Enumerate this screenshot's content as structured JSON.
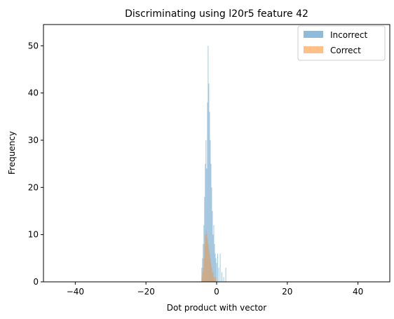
{
  "chart_data": {
    "type": "histogram",
    "title": "Discriminating using l20r5 feature 42",
    "xlabel": "Dot product with vector",
    "ylabel": "Frequency",
    "xlim": [
      -49,
      49
    ],
    "ylim": [
      0,
      54.5
    ],
    "xticks": [
      -40,
      -20,
      0,
      20,
      40
    ],
    "xtick_labels": [
      "−40",
      "−20",
      "0",
      "20",
      "40"
    ],
    "yticks": [
      0,
      10,
      20,
      30,
      40,
      50
    ],
    "ytick_labels": [
      "0",
      "10",
      "20",
      "30",
      "40",
      "50"
    ],
    "grid": false,
    "legend_position": "upper right",
    "bar_opacity": 0.5,
    "series": [
      {
        "name": "Incorrect",
        "color": "#1f77b4",
        "bins": [
          {
            "x": -4.2,
            "count": 3
          },
          {
            "x": -4.0,
            "count": 5
          },
          {
            "x": -3.8,
            "count": 8
          },
          {
            "x": -3.6,
            "count": 12
          },
          {
            "x": -3.4,
            "count": 18
          },
          {
            "x": -3.2,
            "count": 25
          },
          {
            "x": -3.0,
            "count": 30
          },
          {
            "x": -2.8,
            "count": 24
          },
          {
            "x": -2.6,
            "count": 38
          },
          {
            "x": -2.4,
            "count": 50
          },
          {
            "x": -2.2,
            "count": 42
          },
          {
            "x": -2.0,
            "count": 36
          },
          {
            "x": -1.8,
            "count": 30
          },
          {
            "x": -1.6,
            "count": 25
          },
          {
            "x": -1.4,
            "count": 20
          },
          {
            "x": -1.2,
            "count": 15
          },
          {
            "x": -1.0,
            "count": 10
          },
          {
            "x": -0.8,
            "count": 12
          },
          {
            "x": -0.6,
            "count": 8
          },
          {
            "x": -0.4,
            "count": 6
          },
          {
            "x": -0.2,
            "count": 5
          },
          {
            "x": 0.0,
            "count": 4
          },
          {
            "x": 0.3,
            "count": 6
          },
          {
            "x": 0.6,
            "count": 3
          },
          {
            "x": 1.0,
            "count": 6
          },
          {
            "x": 1.5,
            "count": 2
          },
          {
            "x": 2.0,
            "count": 1
          },
          {
            "x": 2.6,
            "count": 3
          }
        ]
      },
      {
        "name": "Correct",
        "color": "#ff7f0e",
        "bins": [
          {
            "x": -4.2,
            "count": 1
          },
          {
            "x": -4.0,
            "count": 2
          },
          {
            "x": -3.8,
            "count": 3
          },
          {
            "x": -3.6,
            "count": 5
          },
          {
            "x": -3.4,
            "count": 8
          },
          {
            "x": -3.2,
            "count": 10
          },
          {
            "x": -3.0,
            "count": 11
          },
          {
            "x": -2.8,
            "count": 10
          },
          {
            "x": -2.6,
            "count": 9
          },
          {
            "x": -2.4,
            "count": 8
          },
          {
            "x": -2.2,
            "count": 7
          },
          {
            "x": -2.0,
            "count": 6
          },
          {
            "x": -1.8,
            "count": 5
          },
          {
            "x": -1.6,
            "count": 4
          },
          {
            "x": -1.4,
            "count": 3
          },
          {
            "x": -1.2,
            "count": 2
          },
          {
            "x": -1.0,
            "count": 2
          },
          {
            "x": -0.8,
            "count": 1
          },
          {
            "x": -0.5,
            "count": 1
          },
          {
            "x": -0.2,
            "count": 1
          }
        ]
      }
    ]
  }
}
